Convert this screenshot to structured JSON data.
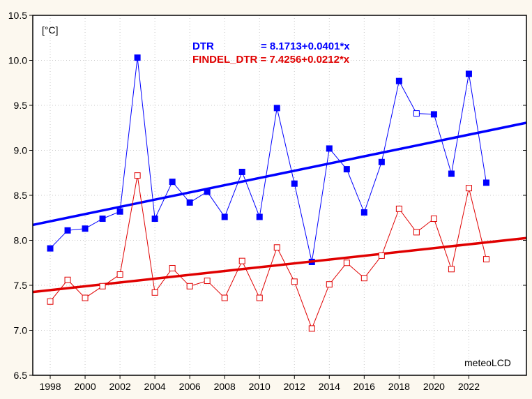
{
  "chart_data": {
    "type": "line",
    "title": "",
    "xlabel": "",
    "ylabel": "[°C]",
    "xlim": [
      1997,
      2025.3
    ],
    "ylim": [
      6.5,
      10.5
    ],
    "grid": true,
    "x": [
      1998,
      1999,
      2000,
      2001,
      2002,
      2003,
      2004,
      2005,
      2006,
      2007,
      2008,
      2009,
      2010,
      2011,
      2012,
      2013,
      2014,
      2015,
      2016,
      2017,
      2018,
      2019,
      2020,
      2021,
      2022,
      2023
    ],
    "x_ticks": [
      1998,
      2000,
      2002,
      2004,
      2006,
      2008,
      2010,
      2012,
      2014,
      2016,
      2018,
      2020,
      2022
    ],
    "y_ticks": [
      "6.5",
      "7.0",
      "7.5",
      "8.0",
      "8.5",
      "9.0",
      "9.5",
      "10.0",
      "10.5"
    ],
    "series": [
      {
        "name": "DTR",
        "color": "#0000ff",
        "marker": "filled-square",
        "open_points_years": [
          2019
        ],
        "values": [
          7.91,
          8.11,
          8.13,
          8.24,
          8.32,
          10.03,
          8.24,
          8.65,
          8.42,
          8.54,
          8.26,
          8.76,
          8.26,
          9.47,
          8.63,
          7.76,
          9.02,
          8.79,
          8.31,
          8.87,
          9.77,
          9.41,
          9.4,
          8.74,
          9.85,
          8.64
        ],
        "trend": {
          "intercept": 8.1713,
          "slope": 0.0401
        }
      },
      {
        "name": "FINDEL_DTR",
        "color": "#e00000",
        "marker": "open-square",
        "values": [
          7.32,
          7.56,
          7.36,
          7.49,
          7.62,
          8.72,
          7.42,
          7.69,
          7.49,
          7.55,
          7.36,
          7.77,
          7.36,
          7.92,
          7.54,
          7.02,
          7.51,
          7.75,
          7.58,
          7.83,
          8.35,
          8.09,
          8.24,
          7.68,
          8.58,
          7.79
        ],
        "trend": {
          "intercept": 7.4256,
          "slope": 0.0212
        }
      }
    ],
    "legend": {
      "dtr_label": "DTR",
      "dtr_eq": "= 8.1713+0.0401*x",
      "findel_label": "FINDEL_DTR = 7.4256+0.0212*x",
      "placement": "top-center"
    },
    "annotation": "meteoLCD"
  }
}
